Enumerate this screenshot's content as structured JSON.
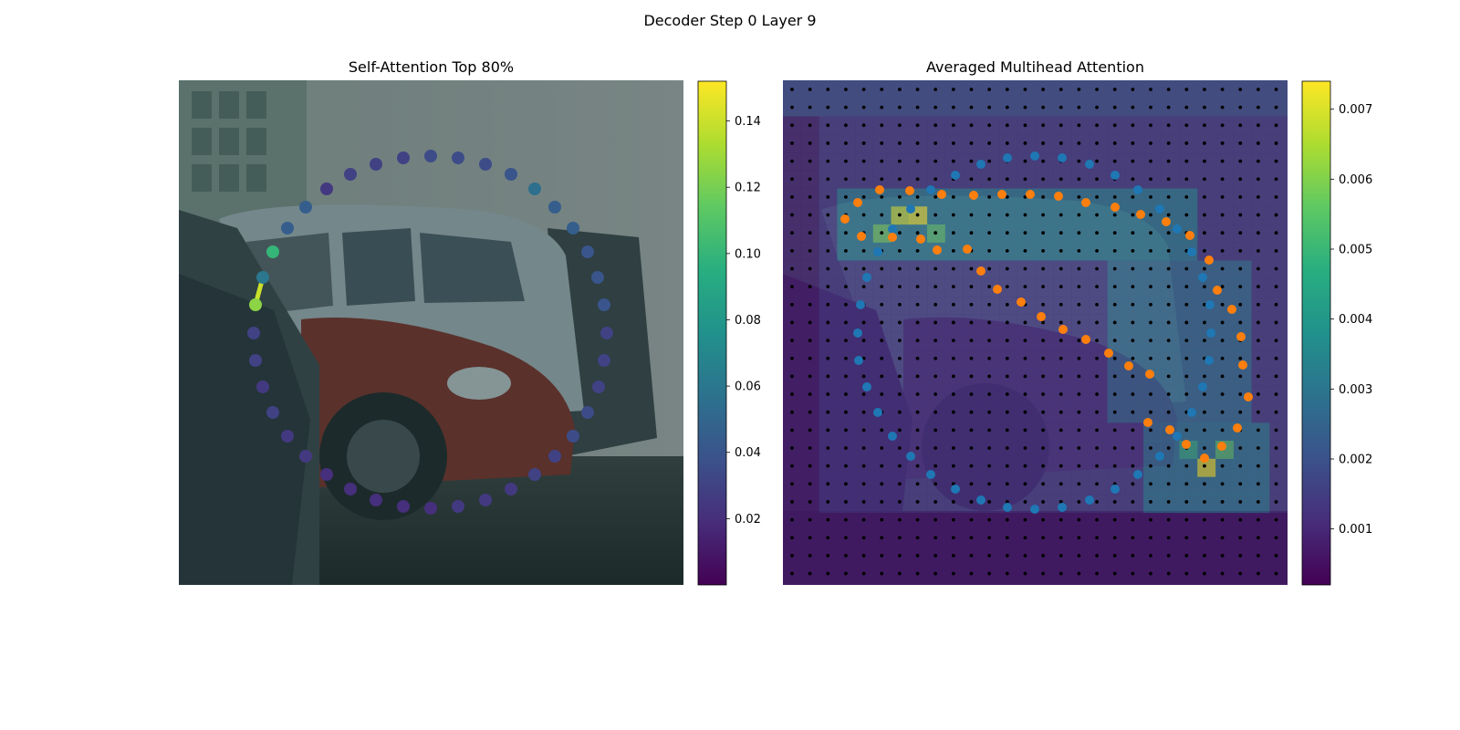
{
  "figure": {
    "suptitle": "Decoder Step 0 Layer 9"
  },
  "colors": {
    "query_points": "#1f77b4",
    "key_points": "#ff7f0e",
    "grid_dots": "#000000",
    "colormap": "viridis"
  },
  "chart_data": [
    {
      "type": "scatter",
      "title": "Self-Attention Top 80%",
      "description_kind": "attention-weighted polygon points over image",
      "colorbar": {
        "min": 0.0,
        "max": 0.152,
        "ticks": [
          0.02,
          0.04,
          0.06,
          0.08,
          0.1,
          0.12,
          0.14
        ],
        "tick_labels": [
          "0.02",
          "0.04",
          "0.06",
          "0.08",
          "0.10",
          "0.12",
          "0.14"
        ]
      },
      "x": [
        472,
        502,
        532,
        560,
        586,
        608,
        628,
        644,
        655,
        662,
        665,
        662,
        656,
        644,
        628,
        608,
        586,
        560,
        532,
        502,
        472,
        442,
        412,
        384,
        358,
        335,
        315,
        299,
        288,
        280,
        278,
        280,
        288,
        299,
        315,
        335,
        358,
        384,
        412,
        442
      ],
      "y": [
        171,
        173,
        180,
        191,
        207,
        227,
        250,
        276,
        304,
        334,
        365,
        395,
        424,
        452,
        478,
        500,
        520,
        536,
        548,
        555,
        557,
        555,
        548,
        536,
        520,
        500,
        478,
        452,
        424,
        395,
        365,
        334,
        304,
        276,
        250,
        227,
        207,
        191,
        180,
        173
      ],
      "values": [
        0.035,
        0.035,
        0.035,
        0.04,
        0.055,
        0.045,
        0.045,
        0.04,
        0.04,
        0.04,
        0.03,
        0.03,
        0.03,
        0.035,
        0.035,
        0.03,
        0.03,
        0.025,
        0.025,
        0.025,
        0.02,
        0.02,
        0.02,
        0.02,
        0.02,
        0.025,
        0.025,
        0.03,
        0.025,
        0.03,
        0.03,
        0.125,
        0.06,
        0.1,
        0.045,
        0.045,
        0.025,
        0.03,
        0.03,
        0.03
      ],
      "highlight_segment": {
        "from_index": 31,
        "to_index": 32,
        "value": 0.14
      }
    },
    {
      "type": "heatmap",
      "title": "Averaged Multihead Attention",
      "colorbar": {
        "min": 0.0002,
        "max": 0.0074,
        "ticks": [
          0.001,
          0.002,
          0.003,
          0.004,
          0.005,
          0.006,
          0.007
        ],
        "tick_labels": [
          "0.001",
          "0.002",
          "0.003",
          "0.004",
          "0.005",
          "0.006",
          "0.007"
        ]
      },
      "grid_size": [
        28,
        28
      ],
      "hotspots": [
        {
          "col": 6,
          "row": 7,
          "value": 0.0068
        },
        {
          "col": 7,
          "row": 7,
          "value": 0.0072
        },
        {
          "col": 5,
          "row": 8,
          "value": 0.0058
        },
        {
          "col": 8,
          "row": 8,
          "value": 0.0055
        },
        {
          "col": 23,
          "row": 21,
          "value": 0.0072
        },
        {
          "col": 24,
          "row": 20,
          "value": 0.0055
        },
        {
          "col": 22,
          "row": 20,
          "value": 0.0048
        }
      ],
      "series": [
        {
          "x": [
            1104,
            1134,
            1164,
            1194,
            1222,
            1247,
            1271,
            1290,
            1306,
            1318,
            1326,
            1327,
            1325,
            1318,
            1306,
            1290,
            1271,
            1247,
            1222,
            1194,
            1164,
            1134,
            1104,
            1075,
            1047,
            1020,
            998,
            978,
            962,
            950,
            941,
            940,
            943,
            950,
            962,
            978,
            998,
            1020,
            1047,
            1075
          ],
          "y": [
            173,
            171,
            173,
            180,
            192,
            208,
            229,
            251,
            276,
            304,
            334,
            365,
            395,
            424,
            452,
            478,
            500,
            520,
            536,
            548,
            556,
            558,
            556,
            548,
            536,
            520,
            500,
            478,
            452,
            424,
            395,
            365,
            334,
            304,
            276,
            251,
            229,
            208,
            192,
            180
          ]
        },
        {
          "x": [
            926,
            940,
            964,
            997,
            1032,
            1067,
            1098,
            1129,
            1160,
            1190,
            1222,
            1250,
            1278,
            1304,
            1325,
            1334,
            1350,
            1360,
            1362,
            1368,
            1356,
            1339,
            1320,
            1300,
            1282,
            1258,
            1260,
            1237,
            1215,
            1190,
            1165,
            1141,
            1119,
            1093,
            1075,
            1060,
            1027,
            1009,
            978,
            944
          ],
          "y": [
            240,
            222,
            208,
            209,
            213,
            214,
            213,
            213,
            215,
            222,
            227,
            235,
            243,
            258,
            285,
            318,
            339,
            369,
            400,
            435,
            469,
            489,
            502,
            487,
            471,
            463,
            410,
            401,
            387,
            372,
            361,
            347,
            331,
            317,
            297,
            273,
            274,
            262,
            260,
            259
          ]
        }
      ]
    }
  ]
}
